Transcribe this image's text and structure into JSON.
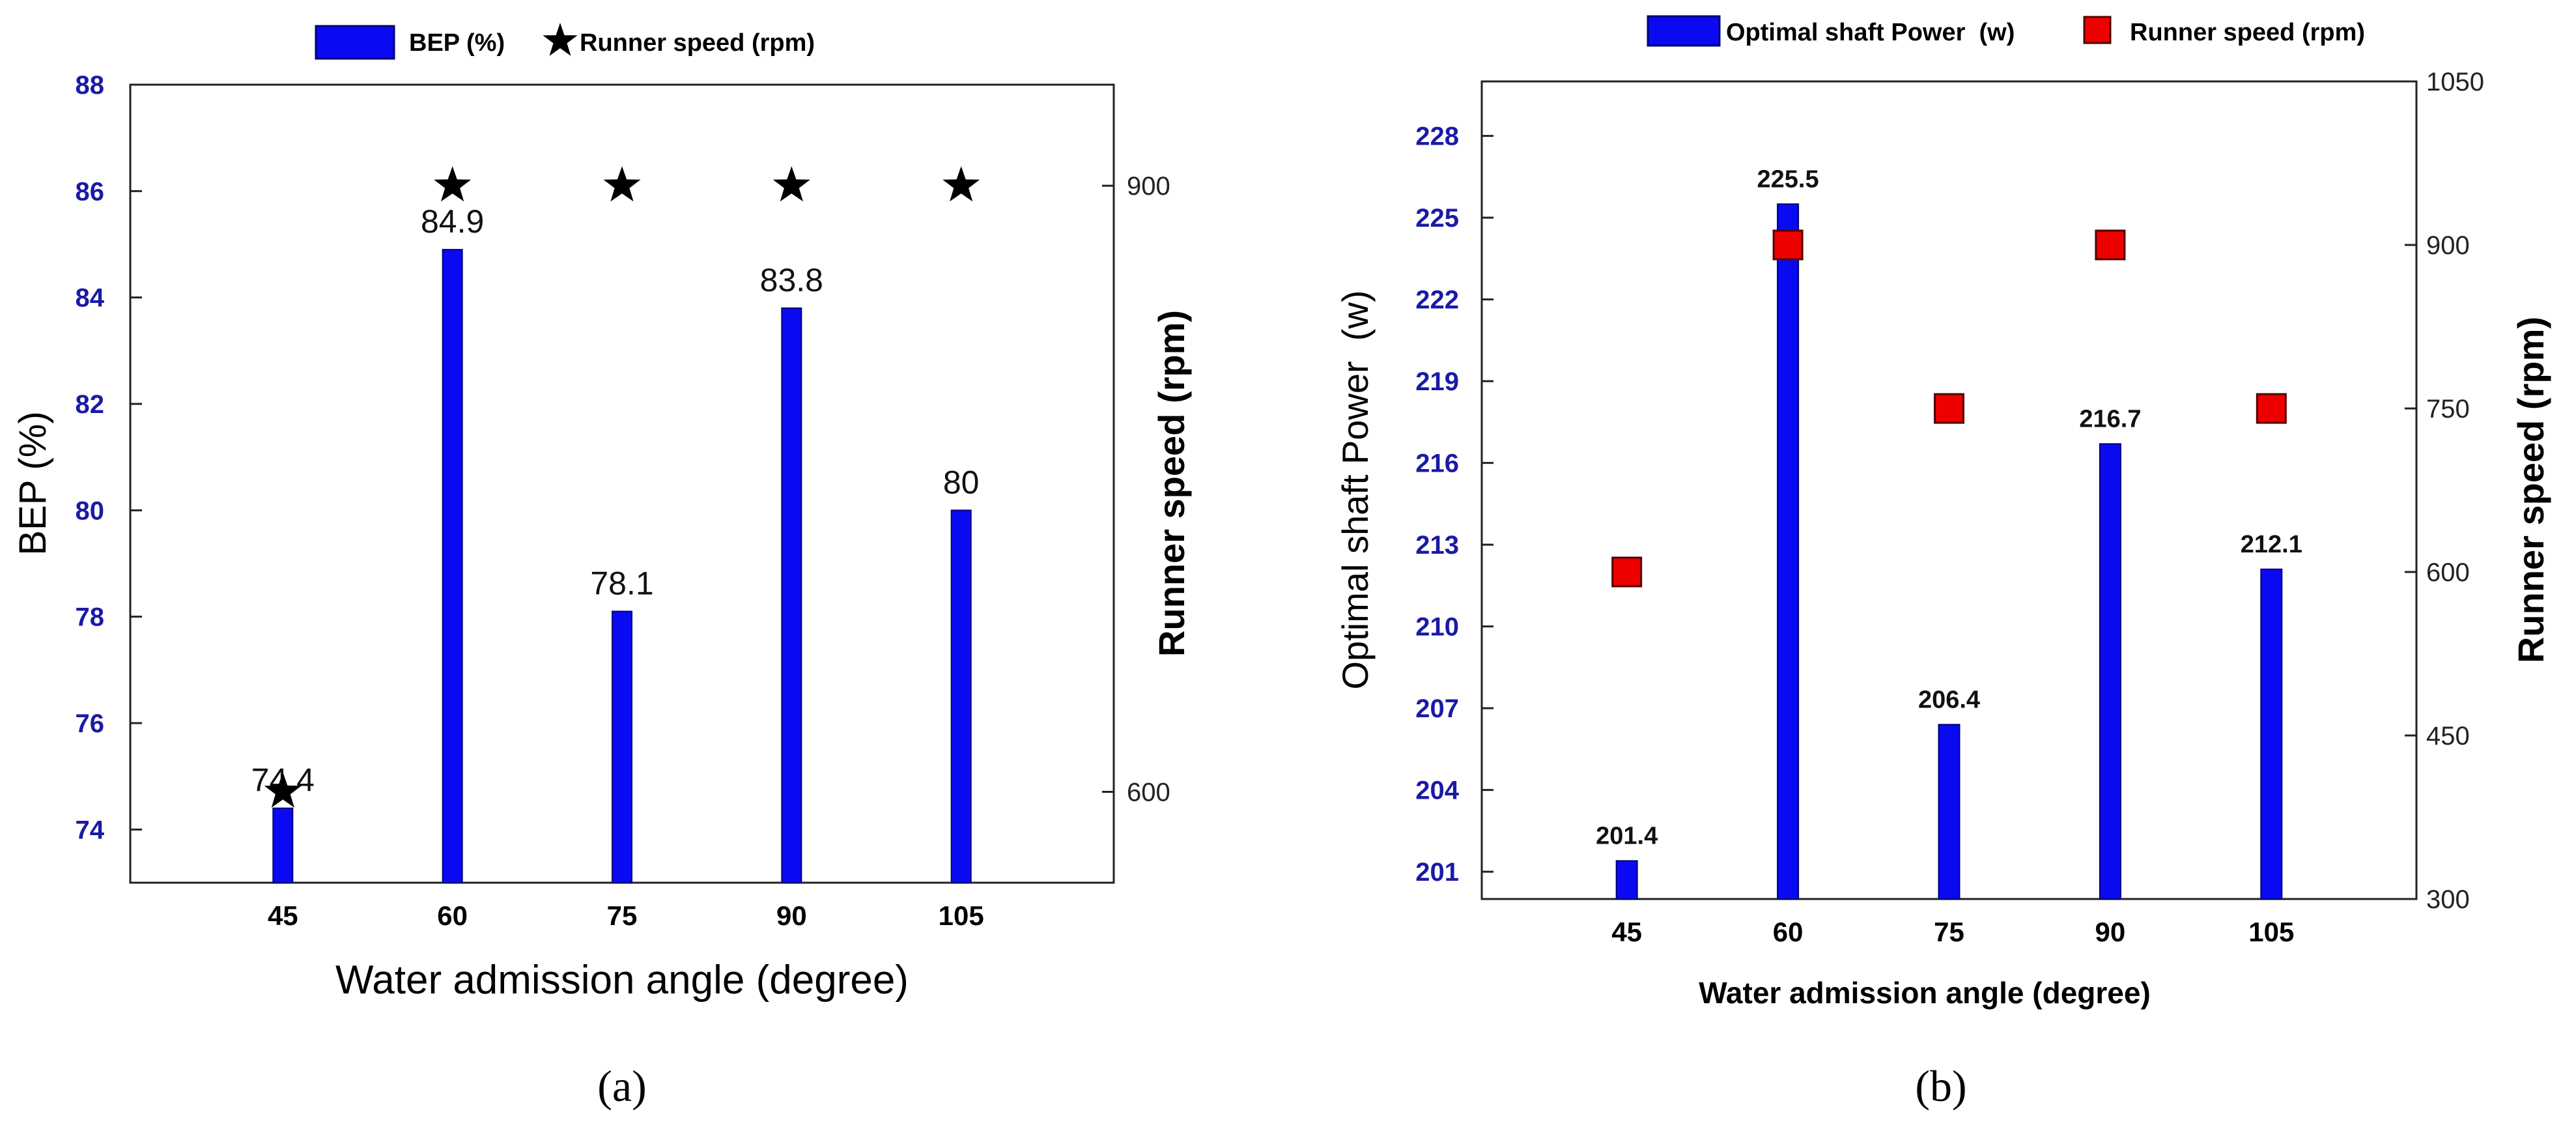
{
  "colors": {
    "bar": "#0a0af2",
    "bar_edge": "#00007a",
    "square": "#ee0000",
    "square_edge": "#550000",
    "star": "#000000",
    "left_ticks": "#1a1aa6"
  },
  "chart_data": [
    {
      "panel": "(a)",
      "type": "bar",
      "title": "",
      "categories": [
        "45",
        "60",
        "75",
        "90",
        "105"
      ],
      "xlabel": "Water admission angle (degree)",
      "ylabel": "BEP (%)",
      "y2label": "Runner speed (rpm)",
      "ylim": [
        73,
        88
      ],
      "yticks": [
        74,
        76,
        78,
        80,
        82,
        84,
        86,
        88
      ],
      "y2lim": [
        555,
        950
      ],
      "y2ticks": [
        600,
        900
      ],
      "legend": [
        {
          "label": "BEP (%)",
          "marker": "bar"
        },
        {
          "label": "Runner speed (rpm)",
          "marker": "star"
        }
      ],
      "series": [
        {
          "name": "BEP (%)",
          "type": "bar",
          "axis": "left",
          "values": [
            74.4,
            84.9,
            78.1,
            83.8,
            80
          ]
        },
        {
          "name": "Runner speed (rpm)",
          "type": "scatter",
          "marker": "star",
          "axis": "right",
          "values": [
            600,
            900,
            900,
            900,
            900
          ]
        }
      ],
      "data_labels": [
        "74.4",
        "84.9",
        "78.1",
        "83.8",
        "80"
      ]
    },
    {
      "panel": "(b)",
      "type": "bar",
      "title": "",
      "categories": [
        "45",
        "60",
        "75",
        "90",
        "105"
      ],
      "xlabel": "Water admission angle (degree)",
      "ylabel": "Optimal shaft Power  (w)",
      "y2label": "Runner speed (rpm)",
      "ylim": [
        200,
        230
      ],
      "yticks": [
        201,
        204,
        207,
        210,
        213,
        216,
        219,
        222,
        225,
        228
      ],
      "y2lim": [
        300,
        1050
      ],
      "y2ticks": [
        300,
        450,
        600,
        750,
        900,
        1050
      ],
      "legend": [
        {
          "label": "Optimal shaft Power  (w)",
          "marker": "bar"
        },
        {
          "label": "Runner speed (rpm)",
          "marker": "square"
        }
      ],
      "series": [
        {
          "name": "Optimal shaft Power  (w)",
          "type": "bar",
          "axis": "left",
          "values": [
            201.4,
            225.5,
            206.4,
            216.7,
            212.1
          ]
        },
        {
          "name": "Runner speed (rpm)",
          "type": "scatter",
          "marker": "square",
          "axis": "right",
          "values": [
            600,
            900,
            750,
            900,
            750
          ]
        }
      ],
      "data_labels": [
        "201.4",
        "225.5",
        "206.4",
        "216.7",
        "212.1"
      ]
    }
  ]
}
